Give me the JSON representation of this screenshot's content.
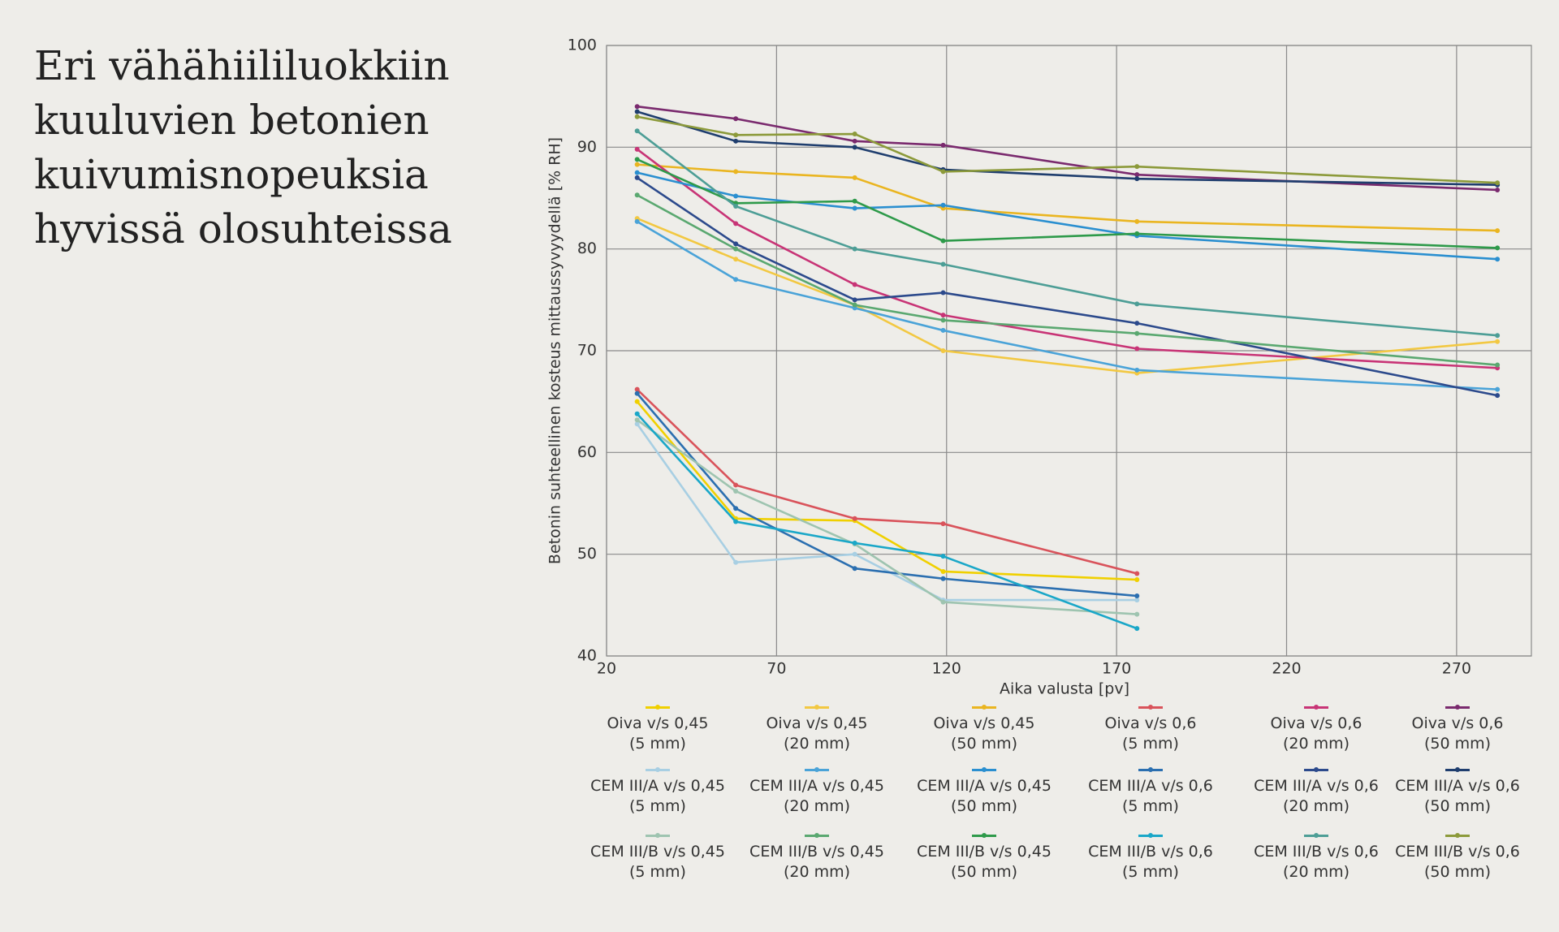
{
  "heading": [
    "Eri vähähiililuokkiin",
    "kuuluvien betonien",
    "kuivumisnopeuksia",
    "hyvissä olosuhteissa"
  ],
  "chart_data": {
    "type": "line",
    "x_label": "Aika valusta [pv]",
    "y_label": "Betonin suhteellinen kosteus mittaussyvyydellä [% RH]",
    "x": [
      29,
      58,
      93,
      119,
      176,
      282
    ],
    "xlim": [
      20,
      292
    ],
    "xticks": [
      20,
      70,
      120,
      170,
      220,
      270
    ],
    "ylim": [
      40,
      100
    ],
    "yticks": [
      40,
      50,
      60,
      70,
      80,
      90,
      100
    ],
    "grid": true,
    "series": [
      {
        "name": "Oiva v/s 0,45\n(5 mm)",
        "color": "#f0d000",
        "values": [
          65,
          53.5,
          53.3,
          48.3,
          47.5,
          null
        ]
      },
      {
        "name": "Oiva v/s 0,45\n(20 mm)",
        "color": "#f2c842",
        "values": [
          83,
          79,
          74.5,
          70,
          67.8,
          70.9
        ]
      },
      {
        "name": "Oiva v/s 0,45\n(50 mm)",
        "color": "#eab520",
        "values": [
          88.3,
          87.6,
          87,
          84,
          82.7,
          81.8
        ]
      },
      {
        "name": "Oiva v/s 0,6\n(5 mm)",
        "color": "#d9535b",
        "values": [
          66.2,
          56.8,
          53.5,
          53,
          48.1,
          null
        ]
      },
      {
        "name": "Oiva v/s 0,6\n(20 mm)",
        "color": "#c83476",
        "values": [
          89.8,
          82.5,
          76.5,
          73.5,
          70.2,
          68.3
        ]
      },
      {
        "name": "Oiva v/s 0,6\n(50 mm)",
        "color": "#7a2a6e",
        "values": [
          94,
          92.8,
          90.6,
          90.2,
          87.3,
          85.8
        ]
      },
      {
        "name": "CEM III/A v/s 0,45\n(5 mm)",
        "color": "#a8cfe3",
        "values": [
          62.8,
          49.2,
          50,
          45.5,
          45.5,
          null
        ]
      },
      {
        "name": "CEM III/A v/s 0,45\n(20 mm)",
        "color": "#4aa3d8",
        "values": [
          82.7,
          77,
          74.2,
          72,
          68.1,
          66.2
        ]
      },
      {
        "name": "CEM III/A v/s 0,45\n(50 mm)",
        "color": "#2a8fd0",
        "values": [
          87.5,
          85.2,
          84,
          84.3,
          81.3,
          79
        ]
      },
      {
        "name": "CEM III/A v/s 0,6\n(5 mm)",
        "color": "#2b6fb0",
        "values": [
          65.8,
          54.5,
          48.6,
          47.6,
          45.9,
          null
        ]
      },
      {
        "name": "CEM III/A v/s 0,6\n(20 mm)",
        "color": "#2c4a8c",
        "values": [
          87,
          80.5,
          75,
          75.7,
          72.7,
          65.6
        ]
      },
      {
        "name": "CEM III/A v/s 0,6\n(50 mm)",
        "color": "#1f3e6e",
        "values": [
          93.5,
          90.6,
          90,
          87.8,
          86.9,
          86.3
        ]
      },
      {
        "name": "CEM III/B v/s 0,45\n(5 mm)",
        "color": "#9ec4b0",
        "values": [
          63.2,
          56.2,
          51,
          45.3,
          44.1,
          null
        ]
      },
      {
        "name": "CEM III/B v/s 0,45\n(20 mm)",
        "color": "#5aa870",
        "values": [
          85.3,
          80,
          74.5,
          73,
          71.7,
          68.6
        ]
      },
      {
        "name": "CEM III/B v/s 0,45\n(50 mm)",
        "color": "#2e9a4a",
        "values": [
          88.8,
          84.5,
          84.7,
          80.8,
          81.5,
          80.1
        ]
      },
      {
        "name": "CEM III/B v/s 0,6\n(5 mm)",
        "color": "#1aa7c8",
        "values": [
          63.8,
          53.2,
          51.1,
          49.8,
          42.7,
          null
        ]
      },
      {
        "name": "CEM III/B v/s 0,6\n(20 mm)",
        "color": "#4d9e96",
        "values": [
          91.6,
          84.2,
          80,
          78.5,
          74.6,
          71.5
        ]
      },
      {
        "name": "CEM III/B v/s 0,6\n(50 mm)",
        "color": "#8c9a3a",
        "values": [
          93,
          91.2,
          91.3,
          87.6,
          88.1,
          86.5
        ]
      }
    ]
  }
}
